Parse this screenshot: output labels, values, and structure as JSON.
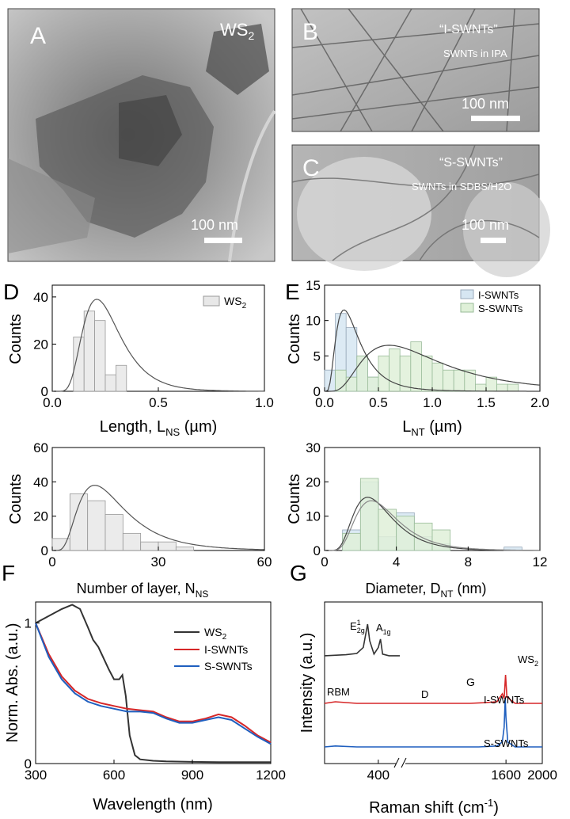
{
  "panels": {
    "A": {
      "letter": "A",
      "label": "WS2",
      "scale": "100 nm"
    },
    "B": {
      "letter": "B",
      "title": "“I-SWNTs”",
      "subtitle": "SWNTs in IPA",
      "scale": "100 nm"
    },
    "C": {
      "letter": "C",
      "title": "“S-SWNTs”",
      "subtitle": "SWNTs in SDBS/H2O",
      "scale": "100 nm"
    },
    "D": {
      "letter": "D"
    },
    "E": {
      "letter": "E"
    },
    "F": {
      "letter": "F"
    },
    "G": {
      "letter": "G"
    }
  },
  "colors": {
    "ws2": "#333333",
    "i_swnts": "#d62728",
    "s_swnts": "#1f5fbf",
    "hist_ws2": "#e8e8e8",
    "hist_i": "#d6e6f2",
    "hist_s": "#dff0d8"
  },
  "chart_data": [
    {
      "id": "D1",
      "type": "histogram",
      "xlabel": "Length, L_NS (µm)",
      "ylabel": "Counts",
      "xlim": [
        0,
        1.0
      ],
      "ylim": [
        0,
        45
      ],
      "xticks": [
        "0.0",
        "0.5",
        "1.0"
      ],
      "yticks": [
        "0",
        "20",
        "40"
      ],
      "legend": [
        "WS2"
      ],
      "legend_position": "top-right",
      "bins": [
        0.1,
        0.15,
        0.2,
        0.25,
        0.3,
        0.35,
        0.4,
        0.45,
        0.5,
        0.55,
        0.6,
        0.65
      ],
      "series": [
        {
          "name": "WS2",
          "values": [
            23,
            34,
            30,
            7,
            11,
            0,
            0,
            0,
            0,
            0,
            0
          ]
        }
      ]
    },
    {
      "id": "D2",
      "type": "histogram",
      "xlabel": "Number of layer, N_NS",
      "ylabel": "Counts",
      "xlim": [
        0,
        60
      ],
      "ylim": [
        0,
        60
      ],
      "xticks": [
        "0",
        "30",
        "60"
      ],
      "yticks": [
        "0",
        "20",
        "40",
        "60"
      ],
      "bins": [
        0,
        5,
        10,
        15,
        20,
        25,
        30,
        35,
        40,
        45
      ],
      "series": [
        {
          "name": "WS2",
          "values": [
            7,
            33,
            29,
            21,
            10,
            5,
            5,
            2,
            0
          ]
        }
      ]
    },
    {
      "id": "E1",
      "type": "histogram",
      "xlabel": "L_NT (µm)",
      "ylabel": "Counts",
      "xlim": [
        0,
        2.0
      ],
      "ylim": [
        0,
        15
      ],
      "xticks": [
        "0.0",
        "0.5",
        "1.0",
        "1.5",
        "2.0"
      ],
      "yticks": [
        "0",
        "5",
        "10",
        "15"
      ],
      "legend": [
        "I-SWNTs",
        "S-SWNTs"
      ],
      "legend_position": "top-right",
      "bins": [
        0.0,
        0.1,
        0.2,
        0.3,
        0.4,
        0.5,
        0.6,
        0.7,
        0.8,
        0.9,
        1.0,
        1.1,
        1.2,
        1.3,
        1.4,
        1.5,
        1.6,
        1.7,
        1.8
      ],
      "series": [
        {
          "name": "I-SWNTs",
          "values": [
            3,
            11,
            9,
            5,
            2,
            0,
            0,
            0,
            0,
            0,
            0,
            0,
            0,
            0,
            0,
            0,
            0,
            0
          ]
        },
        {
          "name": "S-SWNTs",
          "values": [
            0,
            3,
            2,
            5,
            2,
            5,
            6,
            5,
            7,
            5,
            4,
            3,
            3,
            3,
            1,
            2,
            1,
            1
          ]
        }
      ]
    },
    {
      "id": "E2",
      "type": "histogram",
      "xlabel": "Diameter, D_NT (nm)",
      "ylabel": "Counts",
      "xlim": [
        0,
        12
      ],
      "ylim": [
        0,
        30
      ],
      "xticks": [
        "0",
        "4",
        "8",
        "12"
      ],
      "yticks": [
        "0",
        "10",
        "20",
        "30"
      ],
      "bins": [
        1,
        2,
        3,
        4,
        5,
        6,
        7,
        8,
        9,
        10,
        11
      ],
      "series": [
        {
          "name": "I-SWNTs",
          "values": [
            6,
            20,
            4,
            11,
            4,
            2,
            0,
            0,
            0,
            1
          ]
        },
        {
          "name": "S-SWNTs",
          "values": [
            5,
            21,
            12,
            10,
            8,
            6,
            0,
            0,
            0,
            0
          ]
        }
      ]
    },
    {
      "id": "F",
      "type": "line",
      "xlabel": "Wavelength (nm)",
      "ylabel": "Norm. Abs. (a.u.)",
      "xlim": [
        300,
        1200
      ],
      "ylim": [
        0,
        1.15
      ],
      "xticks": [
        "300",
        "600",
        "900",
        "1200"
      ],
      "yticks": [
        "0",
        "1"
      ],
      "legend": [
        "WS2",
        "I-SWNTs",
        "S-SWNTs"
      ],
      "legend_position": "top-right",
      "series": [
        {
          "name": "WS2",
          "x": [
            300,
            350,
            400,
            440,
            470,
            500,
            520,
            540,
            580,
            600,
            620,
            632,
            645,
            660,
            680,
            700,
            750,
            800,
            900,
            1000,
            1100,
            1200
          ],
          "y": [
            1.0,
            1.05,
            1.1,
            1.13,
            1.1,
            0.97,
            0.88,
            0.83,
            0.67,
            0.6,
            0.6,
            0.63,
            0.48,
            0.2,
            0.06,
            0.03,
            0.02,
            0.015,
            0.012,
            0.01,
            0.01,
            0.01
          ]
        },
        {
          "name": "I-SWNTs",
          "x": [
            300,
            350,
            400,
            450,
            500,
            550,
            600,
            650,
            700,
            750,
            800,
            850,
            900,
            950,
            1000,
            1050,
            1100,
            1150,
            1200
          ],
          "y": [
            1.0,
            0.78,
            0.62,
            0.52,
            0.46,
            0.43,
            0.41,
            0.39,
            0.38,
            0.37,
            0.33,
            0.3,
            0.3,
            0.32,
            0.35,
            0.33,
            0.27,
            0.2,
            0.15
          ]
        },
        {
          "name": "S-SWNTs",
          "x": [
            300,
            350,
            400,
            450,
            500,
            550,
            600,
            650,
            700,
            750,
            800,
            850,
            900,
            950,
            1000,
            1050,
            1100,
            1150,
            1200
          ],
          "y": [
            1.0,
            0.76,
            0.6,
            0.5,
            0.44,
            0.41,
            0.39,
            0.37,
            0.37,
            0.36,
            0.32,
            0.29,
            0.29,
            0.31,
            0.33,
            0.31,
            0.25,
            0.19,
            0.14
          ]
        }
      ]
    },
    {
      "id": "G",
      "type": "line",
      "xlabel": "Raman shift (cm-1)",
      "ylabel": "Intensity (a.u.)",
      "xticks": [
        "400",
        "1600",
        "2000"
      ],
      "axis_break": true,
      "legend": [
        "WS2",
        "I-SWNTs",
        "S-SWNTs"
      ],
      "legend_position": "right",
      "annotations": [
        "E12g",
        "A1g",
        "RBM",
        "D",
        "G"
      ],
      "series": [
        {
          "name": "WS2",
          "x": [
            150,
            250,
            300,
            330,
            350,
            360,
            380,
            400,
            410,
            420,
            450,
            500
          ],
          "y": [
            0.05,
            0.08,
            0.12,
            0.3,
            1.0,
            0.5,
            0.1,
            0.3,
            0.55,
            0.1,
            0.05,
            0.05
          ]
        },
        {
          "name": "I-SWNTs",
          "x": [
            150,
            200,
            300,
            500,
            1000,
            1200,
            1350,
            1500,
            1560,
            1580,
            1595,
            1610,
            1700,
            2000
          ],
          "y": [
            0.0,
            0.05,
            0.0,
            0.0,
            0.0,
            0.0,
            0.02,
            0.05,
            0.3,
            0.15,
            0.9,
            0.2,
            0.0,
            0.0
          ]
        },
        {
          "name": "S-SWNTs",
          "x": [
            150,
            200,
            300,
            500,
            1000,
            1300,
            1500,
            1560,
            1580,
            1592,
            1600,
            1620,
            1700,
            2000
          ],
          "y": [
            0.0,
            0.02,
            0.0,
            0.0,
            0.0,
            0.0,
            0.02,
            0.1,
            0.4,
            1.0,
            0.6,
            0.1,
            0.0,
            0.0
          ]
        }
      ]
    }
  ],
  "texts": {
    "D1": {
      "ylabel": "Counts",
      "xlabel_main": "Length, L",
      "xlabel_sub": "NS",
      "xlabel_unit": " (µm)",
      "legend": "WS",
      "legend_sub": "2",
      "ticks_x": [
        "0.0",
        "0.5",
        "1.0"
      ],
      "ticks_y": [
        "0",
        "20",
        "40"
      ]
    },
    "D2": {
      "ylabel": "Counts",
      "xlabel_main": "Number of layer, N",
      "xlabel_sub": "NS",
      "ticks_x": [
        "0",
        "30",
        "60"
      ],
      "ticks_y": [
        "0",
        "20",
        "40",
        "60"
      ]
    },
    "E1": {
      "ylabel": "Counts",
      "xlabel_main": "L",
      "xlabel_sub": "NT",
      "xlabel_unit": " (µm)",
      "legend1": "I-SWNTs",
      "legend2": "S-SWNTs",
      "ticks_x": [
        "0.0",
        "0.5",
        "1.0",
        "1.5",
        "2.0"
      ],
      "ticks_y": [
        "0",
        "5",
        "10",
        "15"
      ]
    },
    "E2": {
      "ylabel": "Counts",
      "xlabel_main": "Diameter, D",
      "xlabel_sub": "NT",
      "xlabel_unit": " (nm)",
      "ticks_x": [
        "0",
        "4",
        "8",
        "12"
      ],
      "ticks_y": [
        "0",
        "10",
        "20",
        "30"
      ]
    },
    "F": {
      "ylabel": "Norm. Abs. (a.u.)",
      "xlabel": "Wavelength (nm)",
      "legend1": "WS",
      "legend1_sub": "2",
      "legend2": "I-SWNTs",
      "legend3": "S-SWNTs",
      "ticks_x": [
        "300",
        "600",
        "900",
        "1200"
      ],
      "ticks_y": [
        "0",
        "1"
      ]
    },
    "G": {
      "ylabel": "Intensity (a.u.)",
      "xlabel_main": "Raman shift (cm",
      "xlabel_sup": "-1",
      "xlabel_end": ")",
      "lab_ws2": "WS",
      "lab_ws2_sub": "2",
      "lab_i": "I-SWNTs",
      "lab_s": "S-SWNTs",
      "peak_e": "E",
      "peak_e_sup": "1",
      "peak_e_sub": "2g",
      "peak_a": "A",
      "peak_a_sub": "1g",
      "peak_rbm": "RBM",
      "peak_d": "D",
      "peak_g": "G",
      "ticks_x": [
        "400",
        "1600",
        "2000"
      ]
    }
  }
}
